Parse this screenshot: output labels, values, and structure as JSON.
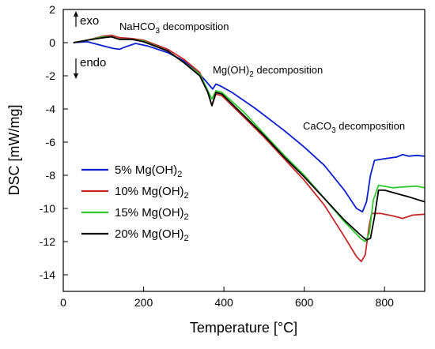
{
  "chart_data": {
    "type": "line",
    "title": "",
    "xlabel": "Temperature [°C]",
    "ylabel": "DSC [mW/mg]",
    "xlim": [
      0,
      900
    ],
    "ylim": [
      -15,
      2
    ],
    "x_ticks": [
      0,
      200,
      400,
      600,
      800
    ],
    "y_ticks": [
      2,
      0,
      -2,
      -4,
      -6,
      -8,
      -10,
      -12,
      -14
    ],
    "grid": false,
    "legend_position": "left-center",
    "annotations": [
      {
        "id": "exo",
        "text": "exo"
      },
      {
        "id": "endo",
        "text": "endo"
      },
      {
        "id": "nahco3",
        "text": "NaHCO",
        "sub": "3",
        "tail": " decomposition"
      },
      {
        "id": "mgoh2",
        "text": "Mg(OH)",
        "sub": "2",
        "tail": " decomposition"
      },
      {
        "id": "caco3",
        "text": "CaCO",
        "sub": "3",
        "tail": " decomposition"
      }
    ],
    "series": [
      {
        "name": "5% Mg(OH)",
        "name_sub": "2",
        "color": "#0a1fcf",
        "points": [
          [
            25,
            0
          ],
          [
            60,
            0.05
          ],
          [
            100,
            -0.2
          ],
          [
            125,
            -0.35
          ],
          [
            140,
            -0.4
          ],
          [
            155,
            -0.25
          ],
          [
            180,
            -0.05
          ],
          [
            210,
            -0.2
          ],
          [
            260,
            -0.6
          ],
          [
            300,
            -1.1
          ],
          [
            340,
            -1.9
          ],
          [
            365,
            -2.6
          ],
          [
            372,
            -2.8
          ],
          [
            380,
            -2.5
          ],
          [
            390,
            -2.6
          ],
          [
            420,
            -3.0
          ],
          [
            480,
            -4.0
          ],
          [
            550,
            -5.3
          ],
          [
            600,
            -6.3
          ],
          [
            650,
            -7.4
          ],
          [
            700,
            -8.9
          ],
          [
            730,
            -10.0
          ],
          [
            745,
            -10.2
          ],
          [
            755,
            -9.6
          ],
          [
            765,
            -8.0
          ],
          [
            775,
            -7.1
          ],
          [
            800,
            -7.0
          ],
          [
            830,
            -6.9
          ],
          [
            845,
            -6.75
          ],
          [
            860,
            -6.85
          ],
          [
            880,
            -6.8
          ],
          [
            900,
            -6.85
          ]
        ]
      },
      {
        "name": "10% Mg(OH)",
        "name_sub": "2",
        "color": "#c62828",
        "points": [
          [
            25,
            0
          ],
          [
            60,
            0.15
          ],
          [
            100,
            0.4
          ],
          [
            120,
            0.45
          ],
          [
            140,
            0.3
          ],
          [
            170,
            0.25
          ],
          [
            200,
            0.15
          ],
          [
            260,
            -0.4
          ],
          [
            300,
            -1.0
          ],
          [
            340,
            -1.8
          ],
          [
            360,
            -3.0
          ],
          [
            370,
            -3.8
          ],
          [
            380,
            -3.1
          ],
          [
            395,
            -3.2
          ],
          [
            450,
            -4.5
          ],
          [
            500,
            -5.7
          ],
          [
            550,
            -7.0
          ],
          [
            600,
            -8.3
          ],
          [
            650,
            -9.8
          ],
          [
            700,
            -11.7
          ],
          [
            730,
            -12.9
          ],
          [
            742,
            -13.2
          ],
          [
            752,
            -12.8
          ],
          [
            762,
            -11.0
          ],
          [
            768,
            -10.3
          ],
          [
            790,
            -10.3
          ],
          [
            820,
            -10.45
          ],
          [
            845,
            -10.6
          ],
          [
            870,
            -10.4
          ],
          [
            900,
            -10.35
          ]
        ]
      },
      {
        "name": "15% Mg(OH)",
        "name_sub": "2",
        "color": "#2fc92f",
        "points": [
          [
            25,
            0
          ],
          [
            60,
            0.15
          ],
          [
            100,
            0.35
          ],
          [
            120,
            0.35
          ],
          [
            140,
            0.2
          ],
          [
            170,
            0.2
          ],
          [
            200,
            0.1
          ],
          [
            260,
            -0.5
          ],
          [
            300,
            -1.2
          ],
          [
            340,
            -1.9
          ],
          [
            360,
            -2.9
          ],
          [
            370,
            -3.4
          ],
          [
            380,
            -2.9
          ],
          [
            395,
            -3.0
          ],
          [
            450,
            -4.2
          ],
          [
            500,
            -5.5
          ],
          [
            550,
            -6.8
          ],
          [
            600,
            -8.0
          ],
          [
            650,
            -9.4
          ],
          [
            700,
            -10.8
          ],
          [
            740,
            -11.8
          ],
          [
            752,
            -12.0
          ],
          [
            762,
            -11.5
          ],
          [
            772,
            -9.5
          ],
          [
            785,
            -8.6
          ],
          [
            820,
            -8.75
          ],
          [
            850,
            -8.7
          ],
          [
            880,
            -8.65
          ],
          [
            900,
            -8.75
          ]
        ]
      },
      {
        "name": "20% Mg(OH)",
        "name_sub": "2",
        "color": "#000000",
        "points": [
          [
            25,
            0
          ],
          [
            60,
            0.15
          ],
          [
            100,
            0.3
          ],
          [
            120,
            0.35
          ],
          [
            140,
            0.2
          ],
          [
            170,
            0.2
          ],
          [
            200,
            0.05
          ],
          [
            260,
            -0.5
          ],
          [
            300,
            -1.2
          ],
          [
            340,
            -2.0
          ],
          [
            360,
            -3.0
          ],
          [
            370,
            -3.8
          ],
          [
            380,
            -3.0
          ],
          [
            395,
            -3.1
          ],
          [
            450,
            -4.4
          ],
          [
            500,
            -5.6
          ],
          [
            550,
            -6.9
          ],
          [
            600,
            -8.1
          ],
          [
            650,
            -9.4
          ],
          [
            700,
            -10.7
          ],
          [
            740,
            -11.6
          ],
          [
            755,
            -11.9
          ],
          [
            765,
            -11.8
          ],
          [
            775,
            -10.5
          ],
          [
            785,
            -8.9
          ],
          [
            800,
            -8.9
          ],
          [
            830,
            -9.1
          ],
          [
            860,
            -9.3
          ],
          [
            900,
            -9.6
          ]
        ]
      }
    ]
  }
}
